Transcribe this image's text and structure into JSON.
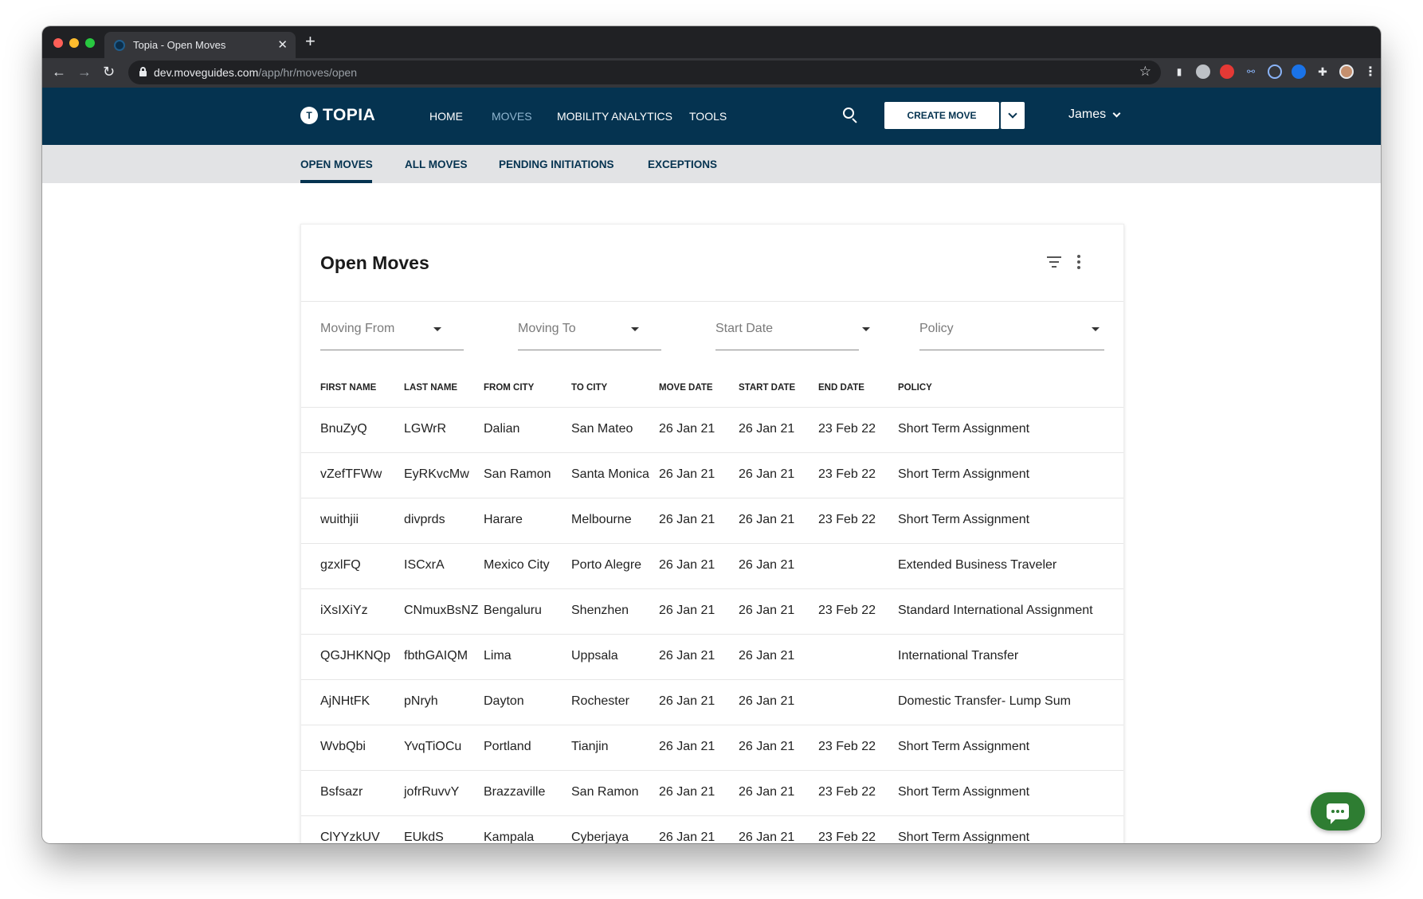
{
  "browser": {
    "tab_title": "Topia - Open Moves",
    "tab_close": "✕",
    "new_tab": "+",
    "url_host": "dev.moveguides.com",
    "url_path": "/app/hr/moves/open"
  },
  "header": {
    "logo_mark": "T",
    "logo_text": "TOPIA",
    "nav": [
      {
        "label": "HOME",
        "active": false
      },
      {
        "label": "MOVES",
        "active": true
      },
      {
        "label": "MOBILITY ANALYTICS",
        "active": false
      },
      {
        "label": "TOOLS",
        "active": false
      }
    ],
    "create_button": "CREATE MOVE",
    "user_name": "James"
  },
  "sub_nav": {
    "items": [
      "OPEN MOVES",
      "ALL MOVES",
      "PENDING INITIATIONS",
      "EXCEPTIONS"
    ],
    "active": "OPEN MOVES"
  },
  "card": {
    "title": "Open Moves",
    "filters": {
      "moving_from": "Moving From",
      "moving_to": "Moving To",
      "start_date": "Start Date",
      "policy": "Policy"
    },
    "columns": [
      "FIRST NAME",
      "LAST NAME",
      "FROM CITY",
      "TO CITY",
      "MOVE DATE",
      "START DATE",
      "END DATE",
      "POLICY"
    ],
    "rows": [
      [
        "BnuZyQ",
        "LGWrR",
        "Dalian",
        "San Mateo",
        "26 Jan 21",
        "26 Jan 21",
        "23 Feb 22",
        "Short Term Assignment"
      ],
      [
        "vZefTFWw",
        "EyRKvcMw",
        "San Ramon",
        "Santa Monica",
        "26 Jan 21",
        "26 Jan 21",
        "23 Feb 22",
        "Short Term Assignment"
      ],
      [
        "wuithjii",
        "divprds",
        "Harare",
        "Melbourne",
        "26 Jan 21",
        "26 Jan 21",
        "23 Feb 22",
        "Short Term Assignment"
      ],
      [
        "gzxlFQ",
        "ISCxrA",
        "Mexico City",
        "Porto Alegre",
        "26 Jan 21",
        "26 Jan 21",
        "",
        "Extended Business Traveler"
      ],
      [
        "iXsIXiYz",
        "CNmuxBsNZ",
        "Bengaluru",
        "Shenzhen",
        "26 Jan 21",
        "26 Jan 21",
        "23 Feb 22",
        "Standard International Assignment"
      ],
      [
        "QGJHKNQp",
        "fbthGAIQM",
        "Lima",
        "Uppsala",
        "26 Jan 21",
        "26 Jan 21",
        "",
        "International Transfer"
      ],
      [
        "AjNHtFK",
        "pNryh",
        "Dayton",
        "Rochester",
        "26 Jan 21",
        "26 Jan 21",
        "",
        "Domestic Transfer- Lump Sum"
      ],
      [
        "WvbQbi",
        "YvqTiOCu",
        "Portland",
        "Tianjin",
        "26 Jan 21",
        "26 Jan 21",
        "23 Feb 22",
        "Short Term Assignment"
      ],
      [
        "Bsfsazr",
        "jofrRuvvY",
        "Brazzaville",
        "San Ramon",
        "26 Jan 21",
        "26 Jan 21",
        "23 Feb 22",
        "Short Term Assignment"
      ],
      [
        "ClYYzkUV",
        "EUkdS",
        "Kampala",
        "Cyberjaya",
        "26 Jan 21",
        "26 Jan 21",
        "23 Feb 22",
        "Short Term Assignment"
      ]
    ]
  },
  "colors": {
    "brand_navy": "#053350",
    "active_nav": "#8fb5cf",
    "chat_green": "#2e7d32"
  },
  "icons": [
    "lock-icon",
    "star-icon",
    "search-icon",
    "chevron-down-icon",
    "filter-icon",
    "kebab-menu-icon",
    "chat-icon"
  ]
}
